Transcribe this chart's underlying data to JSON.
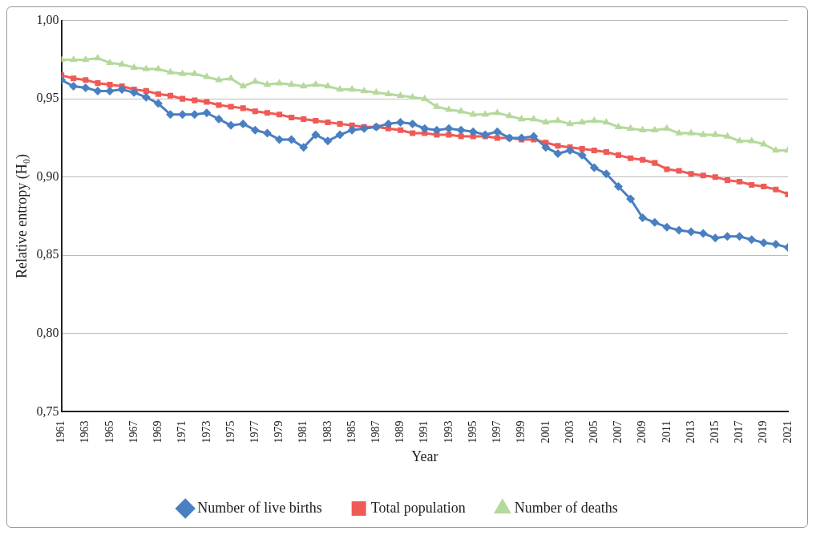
{
  "chart_data": {
    "type": "line",
    "xlabel": "Year",
    "ylabel": "Relative entropy (H₀)",
    "x": [
      1961,
      1962,
      1963,
      1964,
      1965,
      1966,
      1967,
      1968,
      1969,
      1970,
      1971,
      1972,
      1973,
      1974,
      1975,
      1976,
      1977,
      1978,
      1979,
      1980,
      1981,
      1982,
      1983,
      1984,
      1985,
      1986,
      1987,
      1988,
      1989,
      1990,
      1991,
      1992,
      1993,
      1994,
      1995,
      1996,
      1997,
      1998,
      1999,
      2000,
      2001,
      2002,
      2003,
      2004,
      2005,
      2006,
      2007,
      2008,
      2009,
      2010,
      2011,
      2012,
      2013,
      2014,
      2015,
      2016,
      2017,
      2018,
      2019,
      2020,
      2021
    ],
    "series": [
      {
        "name": "Number of live births",
        "color": "#4a7fc1",
        "marker": "diamond",
        "values": [
          0.962,
          0.958,
          0.957,
          0.955,
          0.955,
          0.956,
          0.954,
          0.951,
          0.947,
          0.94,
          0.94,
          0.94,
          0.941,
          0.937,
          0.933,
          0.934,
          0.93,
          0.928,
          0.924,
          0.924,
          0.919,
          0.927,
          0.923,
          0.927,
          0.93,
          0.931,
          0.932,
          0.934,
          0.935,
          0.934,
          0.931,
          0.93,
          0.931,
          0.93,
          0.929,
          0.927,
          0.929,
          0.925,
          0.925,
          0.926,
          0.919,
          0.915,
          0.917,
          0.914,
          0.906,
          0.902,
          0.894,
          0.886,
          0.874,
          0.871,
          0.868,
          0.866,
          0.865,
          0.864,
          0.861,
          0.862,
          0.862,
          0.86,
          0.858,
          0.857,
          0.855
        ]
      },
      {
        "name": "Total population",
        "color": "#f05a55",
        "marker": "square",
        "values": [
          0.965,
          0.963,
          0.962,
          0.96,
          0.959,
          0.958,
          0.956,
          0.955,
          0.953,
          0.952,
          0.95,
          0.949,
          0.948,
          0.946,
          0.945,
          0.944,
          0.942,
          0.941,
          0.94,
          0.938,
          0.937,
          0.936,
          0.935,
          0.934,
          0.933,
          0.932,
          0.932,
          0.931,
          0.93,
          0.928,
          0.928,
          0.927,
          0.927,
          0.926,
          0.926,
          0.926,
          0.925,
          0.925,
          0.924,
          0.924,
          0.922,
          0.92,
          0.919,
          0.918,
          0.917,
          0.916,
          0.914,
          0.912,
          0.911,
          0.909,
          0.905,
          0.904,
          0.902,
          0.901,
          0.9,
          0.898,
          0.897,
          0.895,
          0.894,
          0.892,
          0.889
        ]
      },
      {
        "name": "Number of deaths",
        "color": "#b5d99c",
        "marker": "triangle",
        "values": [
          0.975,
          0.975,
          0.975,
          0.976,
          0.973,
          0.972,
          0.97,
          0.969,
          0.969,
          0.967,
          0.966,
          0.966,
          0.964,
          0.962,
          0.963,
          0.958,
          0.961,
          0.959,
          0.96,
          0.959,
          0.958,
          0.959,
          0.958,
          0.956,
          0.956,
          0.955,
          0.954,
          0.953,
          0.952,
          0.951,
          0.95,
          0.945,
          0.943,
          0.942,
          0.94,
          0.94,
          0.941,
          0.939,
          0.937,
          0.937,
          0.935,
          0.936,
          0.934,
          0.935,
          0.936,
          0.935,
          0.932,
          0.931,
          0.93,
          0.93,
          0.931,
          0.928,
          0.928,
          0.927,
          0.927,
          0.926,
          0.923,
          0.923,
          0.921,
          0.917,
          0.917
        ]
      }
    ],
    "xlim": [
      1961,
      2021
    ],
    "xticks": [
      1961,
      1963,
      1965,
      1967,
      1969,
      1971,
      1973,
      1975,
      1977,
      1979,
      1981,
      1983,
      1985,
      1987,
      1989,
      1991,
      1993,
      1995,
      1997,
      1999,
      2001,
      2003,
      2005,
      2007,
      2009,
      2011,
      2013,
      2015,
      2017,
      2019,
      2021
    ],
    "ylim": [
      0.75,
      1.0
    ],
    "yticks": [
      {
        "value": 0.75,
        "label": "0,75"
      },
      {
        "value": 0.8,
        "label": "0,80"
      },
      {
        "value": 0.85,
        "label": "0,85"
      },
      {
        "value": 0.9,
        "label": "0,90"
      },
      {
        "value": 0.95,
        "label": "0,95"
      },
      {
        "value": 1.0,
        "label": "1,00"
      }
    ],
    "grid": "y",
    "legend": "bottom",
    "line_style": "solid"
  }
}
